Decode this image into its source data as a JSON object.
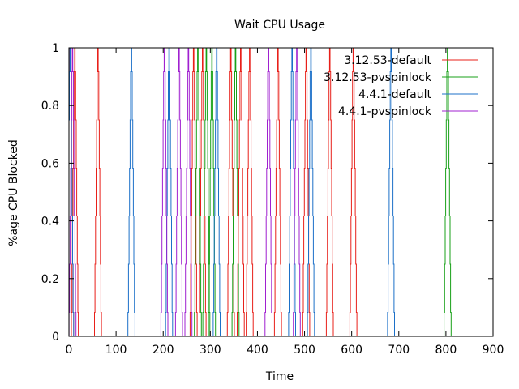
{
  "chart_data": {
    "type": "line",
    "title": "Wait CPU Usage",
    "xlabel": "Time",
    "ylabel": "%age CPU Blocked",
    "xlim": [
      0,
      900
    ],
    "ylim": [
      0,
      1
    ],
    "xticks": [
      0,
      100,
      200,
      300,
      400,
      500,
      600,
      700,
      800,
      900
    ],
    "yticks": [
      0,
      0.2,
      0.4,
      0.6,
      0.8,
      1
    ],
    "grid": false,
    "legend_position": "top-right",
    "series": [
      {
        "name": "3.12.53-default",
        "color": "#e8201a",
        "spike_centers": [
          2,
          12,
          61,
          264,
          283,
          343,
          364,
          383,
          443,
          503,
          553,
          603
        ]
      },
      {
        "name": "3.12.53-pvspinlock",
        "color": "#18a018",
        "spike_centers": [
          273,
          291,
          303,
          353,
          803
        ]
      },
      {
        "name": "4.4.1-default",
        "color": "#1c70c8",
        "spike_centers": [
          2,
          132,
          212,
          313,
          473,
          513,
          683
        ]
      },
      {
        "name": "4.4.1-pvspinlock",
        "color": "#a020d0",
        "spike_centers": [
          7,
          202,
          233,
          253,
          423,
          483
        ]
      }
    ]
  }
}
